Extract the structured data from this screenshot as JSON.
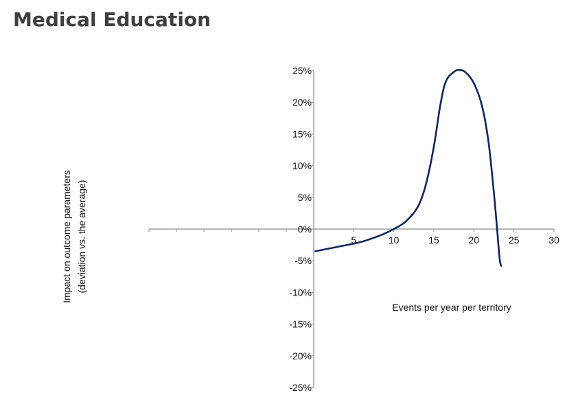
{
  "page": {
    "title": "Medical Education"
  },
  "chart_data": {
    "type": "line",
    "title": "",
    "xlabel": "Events per year per territory",
    "ylabel_lines": [
      "Impact on outcome parameters",
      "(deviation vs. the average)"
    ],
    "xlim": [
      -30,
      30
    ],
    "ylim": [
      -25,
      25
    ],
    "x_ticks": [
      5,
      10,
      15,
      20,
      25,
      30
    ],
    "x_tick_labels": [
      "5",
      "10",
      "15",
      "20",
      "25",
      "30"
    ],
    "x_minor_ticks_negative": [
      -25,
      -20,
      -15,
      -10,
      -5
    ],
    "y_ticks": [
      25,
      20,
      15,
      10,
      5,
      0,
      -5,
      -10,
      -15,
      -20,
      -25
    ],
    "y_tick_labels": [
      "25%",
      "20%",
      "15%",
      "10%",
      "5%",
      "0%",
      "-5%",
      "-10%",
      "-15%",
      "-20%",
      "-25%"
    ],
    "grid": false,
    "series": [
      {
        "color": "#0f2656",
        "points": [
          [
            0.2,
            -3.5
          ],
          [
            3,
            -2.8
          ],
          [
            6,
            -2.0
          ],
          [
            8.5,
            -0.9
          ],
          [
            10,
            0.0
          ],
          [
            11.5,
            1.2
          ],
          [
            13,
            3.5
          ],
          [
            14,
            7.0
          ],
          [
            15,
            13.0
          ],
          [
            15.8,
            19.5
          ],
          [
            16.5,
            23.3
          ],
          [
            17.5,
            24.8
          ],
          [
            18.2,
            25.1
          ],
          [
            19,
            24.7
          ],
          [
            20,
            23.0
          ],
          [
            21,
            19.5
          ],
          [
            21.8,
            14.0
          ],
          [
            22.4,
            7.0
          ],
          [
            22.8,
            1.5
          ],
          [
            23.2,
            -4.5
          ],
          [
            23.4,
            -5.8
          ]
        ]
      }
    ]
  }
}
